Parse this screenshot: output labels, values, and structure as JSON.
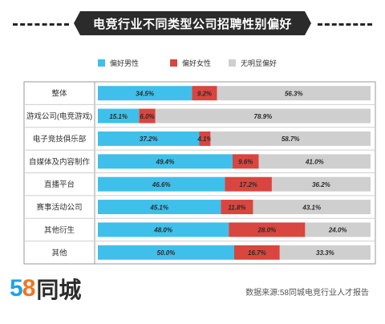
{
  "chart_data": {
    "type": "bar",
    "stacked": "percent",
    "orientation": "horizontal",
    "title": "电竞行业不同类型公司招聘性别偏好",
    "categories": [
      "整体",
      "游戏公司(电竞游戏)",
      "电子竞技俱乐部",
      "自媒体及内容制作",
      "直播平台",
      "赛事活动公司",
      "其他衍生",
      "其他"
    ],
    "series": [
      {
        "name": "偏好男性",
        "color": "#3ec0ea",
        "values": [
          34.5,
          15.1,
          37.2,
          49.4,
          46.6,
          45.1,
          48.0,
          50.0
        ],
        "labels": [
          "34.5%",
          "15.1%",
          "37.2%",
          "49.4%",
          "46.6%",
          "45.1%",
          "48.0%",
          "50.0%"
        ]
      },
      {
        "name": "偏好女性",
        "color": "#d9453f",
        "values": [
          9.2,
          6.0,
          4.1,
          9.6,
          17.2,
          11.8,
          28.0,
          16.7
        ],
        "labels": [
          "9.2%",
          "6.0%",
          "4.1%",
          "9.6%",
          "17.2%",
          "11.8%",
          "28.0%",
          "16.7%"
        ]
      },
      {
        "name": "无明显偏好",
        "color": "#cfcfcf",
        "values": [
          56.3,
          78.9,
          58.7,
          41.0,
          36.2,
          43.1,
          24.0,
          33.3
        ],
        "labels": [
          "56.3%",
          "78.9%",
          "58.7%",
          "41.0%",
          "36.2%",
          "43.1%",
          "24.0%",
          "33.3%"
        ]
      }
    ],
    "legend_position": "top"
  },
  "footer": {
    "logo_digits_5": "5",
    "logo_digits_8": "8",
    "logo_text": "同城",
    "source": "数据来源:58同城电竞行业人才报告"
  }
}
